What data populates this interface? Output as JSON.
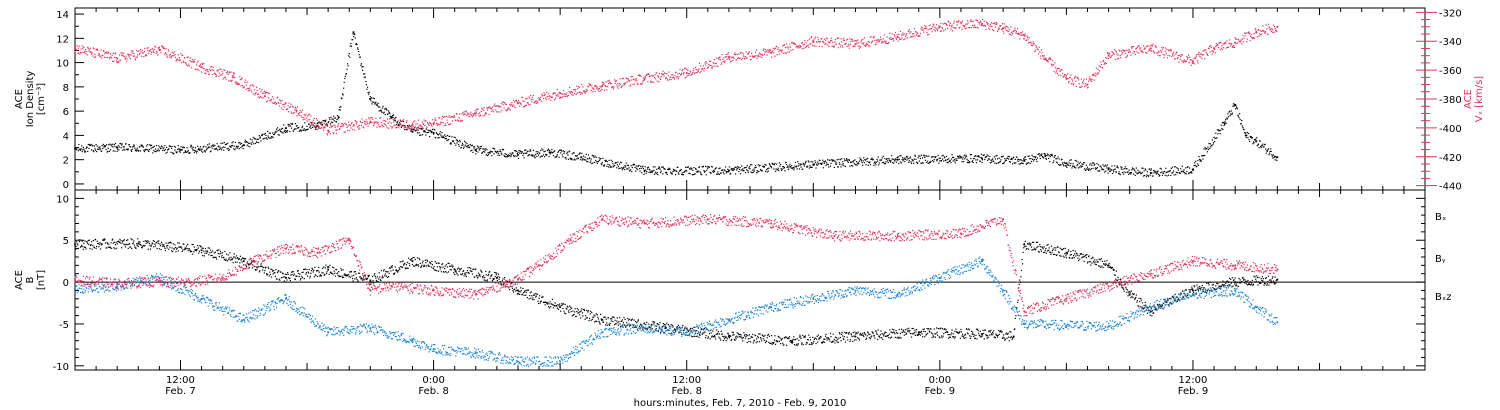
{
  "colors": {
    "black": "#000000",
    "pink": "#e0325f",
    "blue": "#1a84d4"
  },
  "chart_data": [
    {
      "type": "scatter",
      "panel": "top",
      "left_axis": {
        "label_lines": [
          "ACE",
          "Ion Density",
          "[cm⁻³]"
        ],
        "ylim": [
          -0.5,
          14.5
        ],
        "ticks": [
          0,
          2,
          4,
          6,
          8,
          10,
          12,
          14
        ]
      },
      "right_axis": {
        "label_lines": [
          "ACE",
          "Vₓ [km/s]"
        ],
        "ylim": [
          -443,
          -317
        ],
        "ticks": [
          -440,
          -420,
          -400,
          -380,
          -360,
          -340,
          -320
        ]
      },
      "series": [
        {
          "axis": "left",
          "color": "black",
          "x": [
            7.0,
            9.0,
            12.0,
            15.0,
            17.0,
            18.5,
            19.5,
            20.2,
            21.0,
            22.0,
            23.0,
            24.0,
            26.0,
            28.0,
            29.5,
            31.0,
            34.0,
            38.0,
            42.0,
            46.0,
            50.0,
            52.0,
            53.0,
            54.0,
            56.0,
            58.0,
            60.0,
            61.5,
            62.0,
            62.5,
            63.0,
            64.0
          ],
          "y": [
            2.9,
            3.0,
            2.8,
            3.2,
            4.6,
            4.8,
            5.5,
            12.5,
            7.0,
            5.5,
            4.3,
            4.2,
            2.8,
            2.4,
            2.6,
            2.2,
            1.1,
            1.1,
            1.6,
            2.0,
            2.1,
            1.9,
            2.3,
            1.7,
            1.2,
            0.9,
            1.2,
            5.0,
            6.5,
            4.0,
            3.5,
            2.2
          ]
        },
        {
          "axis": "right",
          "color": "pink",
          "x": [
            7.0,
            9.0,
            11.0,
            13.0,
            14.5,
            16.0,
            17.5,
            19.0,
            21.0,
            23.0,
            24.0,
            26.0,
            28.0,
            30.0,
            32.0,
            34.0,
            36.0,
            38.0,
            40.0,
            42.0,
            44.0,
            46.0,
            48.0,
            50.0,
            51.0,
            52.0,
            53.0,
            54.0,
            55.0,
            56.0,
            58.0,
            60.0,
            61.0,
            62.0,
            63.0,
            64.0
          ],
          "y": [
            -345,
            -352,
            -346,
            -358,
            -365,
            -378,
            -388,
            -402,
            -396,
            -398,
            -397,
            -390,
            -383,
            -376,
            -371,
            -366,
            -362,
            -351,
            -348,
            -340,
            -342,
            -337,
            -330,
            -328,
            -331,
            -336,
            -352,
            -366,
            -370,
            -350,
            -345,
            -354,
            -345,
            -341,
            -334,
            -330
          ]
        }
      ]
    },
    {
      "type": "scatter",
      "panel": "bottom",
      "left_axis": {
        "label_lines": [
          "ACE",
          "B",
          "[nT]"
        ],
        "ylim": [
          -10.5,
          11
        ],
        "ticks": [
          -10,
          -5,
          0,
          5,
          10
        ]
      },
      "legend": [
        {
          "label": "Bₓ",
          "color": "black"
        },
        {
          "label": "Bᵧ",
          "color": "blue"
        },
        {
          "label": "Bₓz",
          "color": "pink"
        }
      ],
      "series": [
        {
          "name": "Bₓ",
          "color": "black",
          "x": [
            7.0,
            10.0,
            13.0,
            15.0,
            17.0,
            19.0,
            21.0,
            23.0,
            25.0,
            27.0,
            28.0,
            30.0,
            32.0,
            35.0,
            38.0,
            41.0,
            44.0,
            47.0,
            50.0,
            51.5,
            52.0,
            54.0,
            56.0,
            57.0,
            58.0,
            60.0,
            62.0,
            64.0
          ],
          "y": [
            4.5,
            4.6,
            3.8,
            2.5,
            0.5,
            1.5,
            0.2,
            2.5,
            1.5,
            0.5,
            -1.0,
            -3.0,
            -4.5,
            -5.5,
            -6.5,
            -7.0,
            -6.5,
            -6.0,
            -6.2,
            -6.5,
            4.5,
            3.5,
            2.0,
            -1.5,
            -3.5,
            -1.0,
            0.0,
            0.3
          ]
        },
        {
          "name": "Bᵧ",
          "color": "blue",
          "x": [
            7.0,
            9.0,
            11.0,
            13.0,
            15.0,
            17.0,
            19.0,
            21.0,
            23.0,
            24.0,
            26.0,
            28.0,
            30.0,
            32.0,
            34.0,
            36.0,
            38.0,
            40.0,
            42.0,
            44.0,
            46.0,
            48.0,
            50.0,
            51.0,
            52.0,
            54.0,
            56.0,
            58.0,
            60.0,
            62.0,
            63.0,
            64.0
          ],
          "y": [
            -0.8,
            -0.5,
            0.5,
            -2.0,
            -4.5,
            -2.0,
            -6.0,
            -5.5,
            -7.0,
            -8.0,
            -8.5,
            -9.5,
            -9.5,
            -6.0,
            -5.5,
            -6.0,
            -4.5,
            -3.0,
            -2.0,
            -1.0,
            -1.5,
            0.5,
            2.5,
            -1.0,
            -5.0,
            -5.2,
            -5.3,
            -3.0,
            -1.5,
            -1.0,
            -3.0,
            -4.8
          ]
        },
        {
          "name": "Bₓz",
          "color": "pink",
          "x": [
            7.0,
            9.0,
            11.0,
            12.5,
            14.0,
            15.5,
            17.0,
            18.5,
            20.0,
            21.0,
            22.0,
            24.0,
            26.0,
            28.0,
            29.0,
            30.5,
            32.0,
            34.0,
            37.0,
            40.0,
            43.0,
            46.0,
            49.0,
            51.0,
            52.0,
            54.0,
            56.0,
            58.0,
            60.0,
            62.0,
            64.0
          ],
          "y": [
            0.2,
            -0.2,
            0.0,
            0.0,
            0.5,
            2.5,
            4.0,
            3.5,
            5.0,
            -1.0,
            -0.5,
            -1.0,
            -1.5,
            0.3,
            2.0,
            5.0,
            7.5,
            7.0,
            7.5,
            7.0,
            5.5,
            5.5,
            5.8,
            7.5,
            -3.5,
            -2.0,
            -0.5,
            1.0,
            2.5,
            2.0,
            1.5
          ]
        }
      ]
    }
  ],
  "time_axis": {
    "xlim": [
      7.0,
      71.0
    ],
    "major_ticks": [
      {
        "t": 12,
        "time": "12:00",
        "date": "Feb. 7"
      },
      {
        "t": 24,
        "time": "0:00",
        "date": "Feb. 8"
      },
      {
        "t": 36,
        "time": "12:00",
        "date": "Feb. 8"
      },
      {
        "t": 48,
        "time": "0:00",
        "date": "Feb. 9"
      },
      {
        "t": 60,
        "time": "12:00",
        "date": "Feb. 9"
      }
    ],
    "title": "hours:minutes, Feb.  7, 2010 - Feb.  9, 2010"
  }
}
